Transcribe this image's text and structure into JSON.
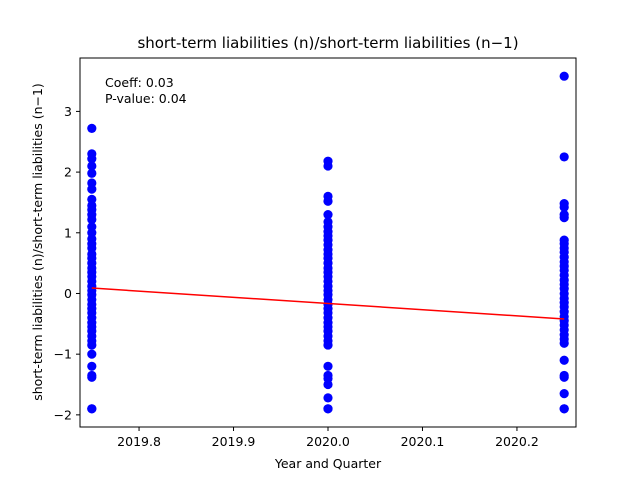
{
  "chart_data": {
    "type": "scatter",
    "title": "short-term liabilities (n)/short-term liabilities (n−1)",
    "xlabel": "Year and Quarter",
    "ylabel": "short-term liabilities (n)/short-term liabilities (n−1)",
    "xlim": [
      2019.7375,
      2020.2625
    ],
    "ylim": [
      -2.2,
      3.88
    ],
    "xticks": [
      2019.8,
      2019.9,
      2020.0,
      2020.1,
      2020.2
    ],
    "xtick_labels": [
      "2019.8",
      "2019.9",
      "2020.0",
      "2020.1",
      "2020.2"
    ],
    "yticks": [
      -2,
      -1,
      0,
      1,
      2,
      3
    ],
    "ytick_labels": [
      "−2",
      "−1",
      "0",
      "1",
      "2",
      "3"
    ],
    "grid": false,
    "point_color": "#0000ff",
    "line_color": "#ff0000",
    "annotations": [
      "Coeff: 0.03",
      "P-value: 0.04"
    ],
    "series": [
      {
        "x": 2019.75,
        "y": [
          2.72,
          2.3,
          2.22,
          2.1,
          1.98,
          1.82,
          1.72,
          1.55,
          1.45,
          1.38,
          1.3,
          1.22,
          1.1,
          1.0,
          0.9,
          0.82,
          0.75,
          0.65,
          0.58,
          0.5,
          0.42,
          0.35,
          0.28,
          0.2,
          0.12,
          0.05,
          -0.02,
          -0.1,
          -0.18,
          -0.25,
          -0.32,
          -0.4,
          -0.48,
          -0.55,
          -0.62,
          -0.7,
          -0.78,
          -0.85,
          -1.0,
          -1.2,
          -1.35,
          -1.38,
          -1.9,
          -1.9
        ]
      },
      {
        "x": 2020.0,
        "y": [
          2.18,
          2.1,
          1.6,
          1.52,
          1.3,
          1.18,
          1.1,
          1.02,
          0.95,
          0.88,
          0.8,
          0.72,
          0.65,
          0.58,
          0.5,
          0.42,
          0.35,
          0.28,
          0.2,
          0.12,
          0.05,
          -0.02,
          -0.1,
          -0.18,
          -0.25,
          -0.32,
          -0.4,
          -0.48,
          -0.55,
          -0.62,
          -0.7,
          -0.78,
          -0.85,
          -1.2,
          -1.35,
          -1.4,
          -1.5,
          -1.72,
          -1.9,
          -1.9
        ]
      },
      {
        "x": 2020.25,
        "y": [
          3.58,
          2.25,
          1.48,
          1.42,
          1.3,
          1.25,
          0.88,
          0.82,
          0.75,
          0.68,
          0.6,
          0.52,
          0.45,
          0.38,
          0.3,
          0.22,
          0.15,
          0.08,
          0.0,
          -0.08,
          -0.15,
          -0.22,
          -0.3,
          -0.38,
          -0.45,
          -0.52,
          -0.6,
          -0.68,
          -0.75,
          -0.82,
          -1.1,
          -1.35,
          -1.38,
          -1.65,
          -1.9,
          -1.9
        ]
      }
    ],
    "regression_line": {
      "x": [
        2019.75,
        2020.25
      ],
      "y": [
        0.09,
        -0.42
      ]
    }
  }
}
